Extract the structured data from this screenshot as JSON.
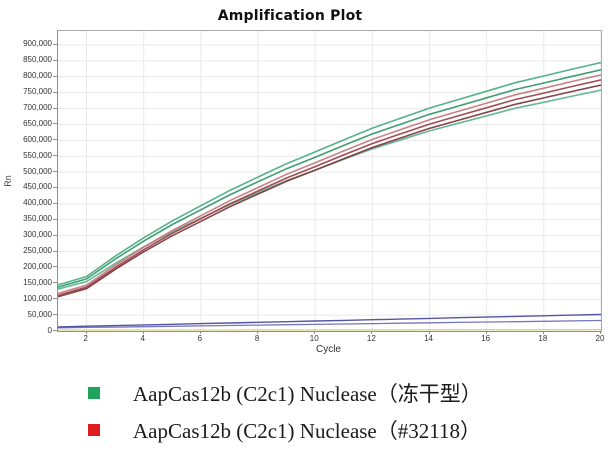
{
  "chart_data": {
    "type": "line",
    "title": "Amplification Plot",
    "xlabel": "Cycle",
    "ylabel": "Rn",
    "xlim": [
      1,
      20
    ],
    "ylim": [
      0,
      944000
    ],
    "grid": true,
    "legend_position": "bottom",
    "x_ticks": [
      2,
      4,
      6,
      8,
      10,
      12,
      14,
      16,
      18,
      20
    ],
    "y_ticks": [
      0,
      50000,
      100000,
      150000,
      200000,
      250000,
      300000,
      350000,
      400000,
      450000,
      500000,
      550000,
      600000,
      650000,
      700000,
      750000,
      800000,
      850000,
      900000
    ],
    "x": [
      1,
      2,
      3,
      4,
      5,
      6,
      7,
      8,
      9,
      10,
      11,
      12,
      13,
      14,
      15,
      16,
      17,
      18,
      19,
      20
    ],
    "series": [
      {
        "name": "baseline-yellow",
        "color": "#c9c95a",
        "width": 1.1,
        "values": [
          3000,
          3100,
          3100,
          3200,
          3200,
          3300,
          3300,
          3400,
          3400,
          3500,
          3500,
          3600,
          3600,
          3700,
          3700,
          3800,
          3800,
          3900,
          3900,
          4000
        ]
      },
      {
        "name": "ntc-blue-2",
        "color": "#6a6ab8",
        "width": 1.3,
        "values": [
          10000,
          11200,
          12400,
          13600,
          14800,
          16100,
          17300,
          18500,
          19700,
          20900,
          22100,
          23300,
          24500,
          25800,
          27000,
          28200,
          29400,
          30600,
          31800,
          33000
        ]
      },
      {
        "name": "ntc-blue-1",
        "color": "#46469e",
        "width": 1.4,
        "values": [
          13000,
          15100,
          17100,
          19200,
          21200,
          23300,
          25300,
          27400,
          29400,
          31500,
          33500,
          35600,
          37600,
          39700,
          41700,
          43800,
          45800,
          47900,
          49900,
          52000
        ]
      },
      {
        "name": "lyophilized-green-rep3",
        "color": "#58b38c",
        "width": 1.6,
        "values": [
          132000,
          155800,
          212800,
          264700,
          312300,
          354900,
          397400,
          435600,
          473200,
          506300,
          540200,
          573300,
          601500,
          629700,
          653500,
          677300,
          701100,
          719800,
          739200,
          758000
        ]
      },
      {
        "name": "32118-red-rep3",
        "color": "#7c353c",
        "width": 1.6,
        "values": [
          108000,
          133300,
          193900,
          249200,
          299800,
          345100,
          390400,
          431000,
          471000,
          506300,
          542200,
          577500,
          607500,
          637500,
          662800,
          688100,
          713400,
          733400,
          754000,
          774000
        ]
      },
      {
        "name": "32118-red-rep2",
        "color": "#9a3d44",
        "width": 1.6,
        "values": [
          112000,
          137800,
          199500,
          255700,
          307300,
          353400,
          399500,
          440800,
          481500,
          517400,
          554100,
          590000,
          620500,
          651000,
          676800,
          702500,
          728300,
          748600,
          769700,
          790000
        ]
      },
      {
        "name": "32118-red-rep1",
        "color": "#c4777e",
        "width": 1.6,
        "values": [
          118000,
          144100,
          206800,
          263900,
          316100,
          362900,
          409700,
          451700,
          493000,
          529400,
          566600,
          603000,
          634000,
          665000,
          691100,
          717200,
          743400,
          764000,
          785400,
          806000
        ]
      },
      {
        "name": "lyophilized-green-rep2",
        "color": "#2f9568",
        "width": 1.6,
        "values": [
          138000,
          164000,
          226200,
          283000,
          335000,
          381500,
          428000,
          469700,
          510800,
          547000,
          584000,
          620200,
          651000,
          681800,
          707800,
          733800,
          759800,
          780300,
          801500,
          822000
        ]
      },
      {
        "name": "lyophilized-green-rep1",
        "color": "#45ab7e",
        "width": 1.6,
        "values": [
          145000,
          171600,
          235300,
          293400,
          346600,
          394200,
          441800,
          484500,
          526500,
          563600,
          601400,
          638500,
          670000,
          701500,
          728100,
          754700,
          781300,
          802300,
          824000,
          845000
        ]
      }
    ]
  },
  "legend": {
    "items": [
      {
        "label": "AapCas12b (C2c1) Nuclease（冻干型）",
        "color": "#1fa35c"
      },
      {
        "label": "AapCas12b (C2c1) Nuclease（#32118）",
        "color": "#dd1d1d"
      }
    ]
  },
  "style": {
    "grid_color": "#e9e9e9",
    "frame_color": "#a8a8a8",
    "tick_color": "#8f8f8f"
  }
}
